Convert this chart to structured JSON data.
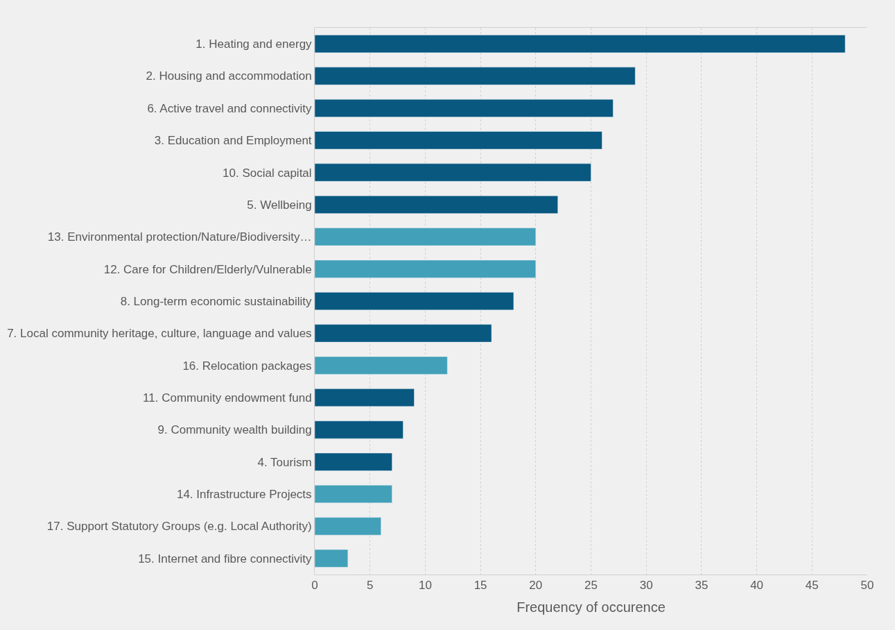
{
  "chart_data": {
    "type": "bar",
    "orientation": "horizontal",
    "xlabel": "Frequency of occurence",
    "categories": [
      "1. Heating and energy",
      "2. Housing and accommodation",
      "6. Active travel and connectivity",
      "3. Education and Employment",
      "10. Social capital",
      "5. Wellbeing",
      "13. Environmental protection/Nature/Biodiversity…",
      "12. Care for Children/Elderly/Vulnerable",
      "8. Long-term economic sustainability",
      "7. Local community heritage, culture, language and values",
      "16. Relocation packages",
      "11. Community endowment fund",
      "9. Community wealth building",
      "4. Tourism",
      "14. Infrastructure Projects",
      "17. Support Statutory Groups (e.g. Local Authority)",
      "15. Internet and fibre connectivity"
    ],
    "values": [
      48,
      29,
      27,
      26,
      25,
      22,
      20,
      20,
      18,
      16,
      12,
      9,
      8,
      7,
      7,
      6,
      3
    ],
    "colors": [
      "#08587f",
      "#08587f",
      "#08587f",
      "#08587f",
      "#08587f",
      "#08587f",
      "#42a0b8",
      "#42a0b8",
      "#08587f",
      "#08587f",
      "#42a0b8",
      "#08587f",
      "#08587f",
      "#08587f",
      "#42a0b8",
      "#42a0b8",
      "#42a0b8"
    ],
    "xlim": [
      0,
      50
    ],
    "xticks": [
      0,
      5,
      10,
      15,
      20,
      25,
      30,
      35,
      40,
      45,
      50
    ],
    "grid": "x"
  }
}
